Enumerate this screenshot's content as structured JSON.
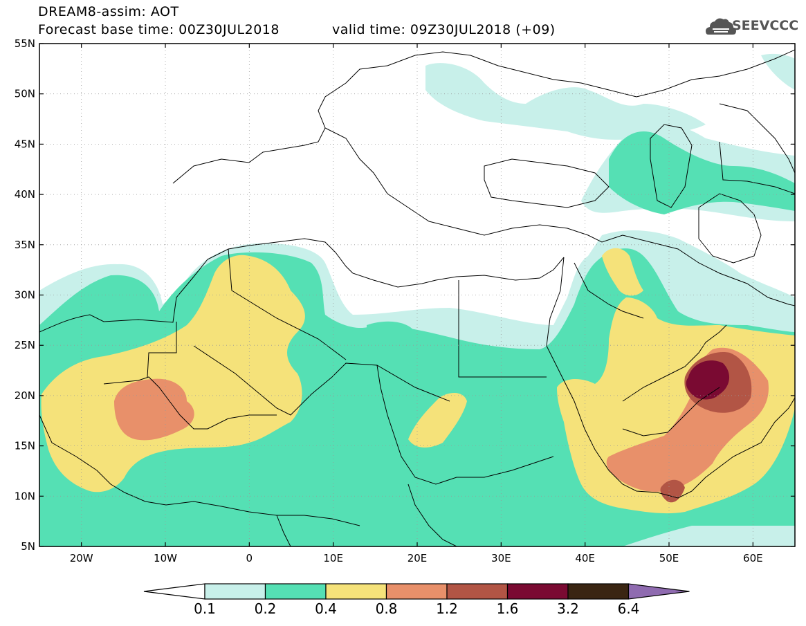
{
  "title": {
    "line1": "DREAM8-assim: AOT",
    "line2": "Forecast base time: 00Z30JUL2018",
    "valid": "valid time: 09Z30JUL2018 (+09)"
  },
  "logo": {
    "text": "SEEVCCC",
    "icon": "cloud-icon"
  },
  "map": {
    "lat_labels": [
      "55N",
      "50N",
      "45N",
      "40N",
      "35N",
      "30N",
      "25N",
      "20N",
      "15N",
      "10N",
      "5N"
    ],
    "lon_labels": [
      "20W",
      "10W",
      "0",
      "10E",
      "20E",
      "30E",
      "40E",
      "50E",
      "60E"
    ],
    "lon_range": [
      -25,
      65
    ],
    "lat_range": [
      5,
      55
    ]
  },
  "colorbar": {
    "levels": [
      "0.1",
      "0.2",
      "0.4",
      "0.8",
      "1.2",
      "1.6",
      "3.2",
      "6.4"
    ],
    "colors": [
      "#c8f0ea",
      "#55e0b4",
      "#f5e27a",
      "#e8906a",
      "#b25545",
      "#7a0a32",
      "#3a2512",
      "#8f6bb0"
    ],
    "under_color": "#ffffff"
  },
  "fields": {
    "level_colors": {
      "l1": "#c8f0ea",
      "l2": "#55e0b4",
      "l3": "#f5e27a",
      "l4": "#e8906a",
      "l5": "#b25545",
      "l6": "#7a0a32"
    }
  }
}
